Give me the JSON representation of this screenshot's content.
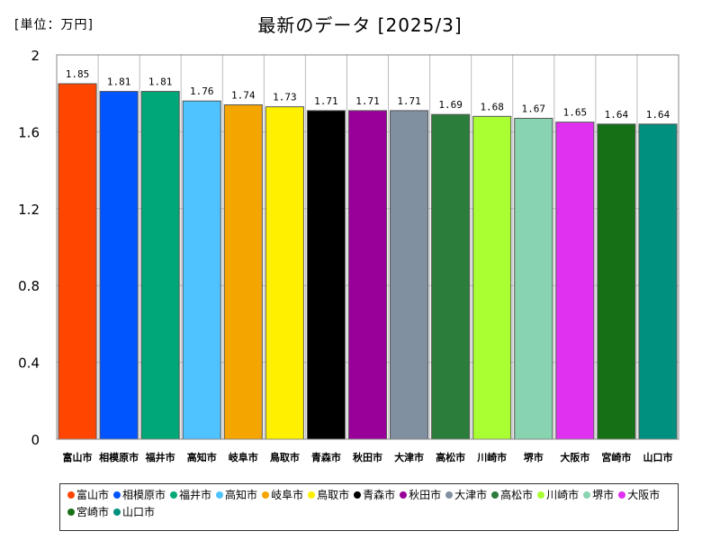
{
  "unit_label": "[単位：万円]",
  "chart_data": {
    "type": "bar",
    "title": "最新のデータ [2025/3]",
    "ylim": [
      0,
      2
    ],
    "yticks": [
      "0",
      "0.4",
      "0.8",
      "1.2",
      "1.6",
      "2"
    ],
    "grid": true,
    "legend_position": "bottom",
    "categories": [
      "富山市",
      "相模原市",
      "福井市",
      "高知市",
      "岐阜市",
      "鳥取市",
      "青森市",
      "秋田市",
      "大津市",
      "高松市",
      "川崎市",
      "堺市",
      "大阪市",
      "宮崎市",
      "山口市"
    ],
    "values": [
      1.85,
      1.81,
      1.81,
      1.76,
      1.74,
      1.73,
      1.71,
      1.71,
      1.71,
      1.69,
      1.68,
      1.67,
      1.65,
      1.64,
      1.64
    ],
    "value_labels": [
      "1.85",
      "1.81",
      "1.81",
      "1.76",
      "1.74",
      "1.73",
      "1.71",
      "1.71",
      "1.71",
      "1.69",
      "1.68",
      "1.67",
      "1.65",
      "1.64",
      "1.64"
    ],
    "colors": [
      "#ff4500",
      "#0055ff",
      "#00a878",
      "#4fc3ff",
      "#f5a500",
      "#fff000",
      "#000000",
      "#990099",
      "#8090a0",
      "#2a7d3a",
      "#aaff33",
      "#88d4b0",
      "#e030f0",
      "#167016",
      "#009080"
    ]
  }
}
